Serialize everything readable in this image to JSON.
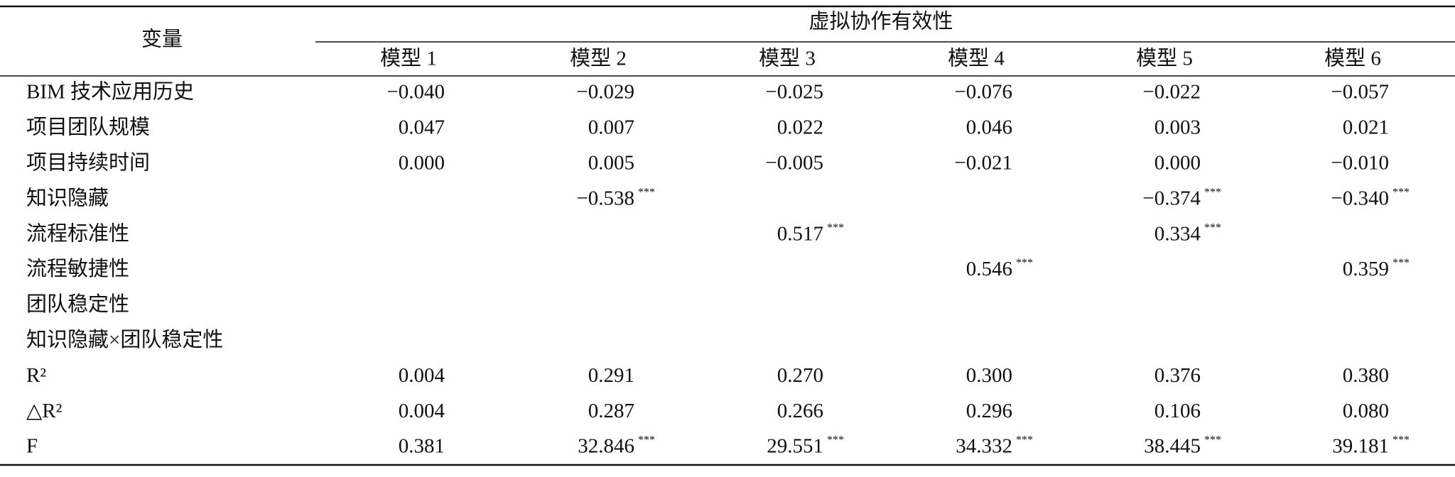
{
  "header": {
    "row_label": "变量",
    "group": "虚拟协作有效性",
    "models": [
      "模型 1",
      "模型 2",
      "模型 3",
      "模型 4",
      "模型 5",
      "模型 6"
    ]
  },
  "table": {
    "rows": [
      {
        "label": "BIM 技术应用历史",
        "cells": [
          {
            "text": "−0.040"
          },
          {
            "text": "−0.029"
          },
          {
            "text": "−0.025"
          },
          {
            "text": "−0.076"
          },
          {
            "text": "−0.022"
          },
          {
            "text": "−0.057"
          }
        ]
      },
      {
        "label": "项目团队规模",
        "cells": [
          {
            "text": "0.047"
          },
          {
            "text": "0.007"
          },
          {
            "text": "0.022"
          },
          {
            "text": "0.046"
          },
          {
            "text": "0.003"
          },
          {
            "text": "0.021"
          }
        ]
      },
      {
        "label": "项目持续时间",
        "cells": [
          {
            "text": "0.000"
          },
          {
            "text": "0.005"
          },
          {
            "text": "−0.005"
          },
          {
            "text": "−0.021"
          },
          {
            "text": "0.000"
          },
          {
            "text": "−0.010"
          }
        ]
      },
      {
        "label": "知识隐藏",
        "cells": [
          null,
          {
            "text": "−0.538",
            "sig": "***"
          },
          null,
          null,
          {
            "text": "−0.374",
            "sig": "***"
          },
          {
            "text": "−0.340",
            "sig": "***"
          }
        ]
      },
      {
        "label": "流程标准性",
        "cells": [
          null,
          null,
          {
            "text": "0.517",
            "sig": "***"
          },
          null,
          {
            "text": "0.334",
            "sig": "***"
          },
          null
        ]
      },
      {
        "label": "流程敏捷性",
        "cells": [
          null,
          null,
          null,
          {
            "text": "0.546",
            "sig": "***"
          },
          null,
          {
            "text": "0.359",
            "sig": "***"
          }
        ]
      },
      {
        "label": "团队稳定性",
        "cells": [
          null,
          null,
          null,
          null,
          null,
          null
        ]
      },
      {
        "label": "知识隐藏×团队稳定性",
        "cells": [
          null,
          null,
          null,
          null,
          null,
          null
        ]
      },
      {
        "label": "R²",
        "cells": [
          {
            "text": "0.004"
          },
          {
            "text": "0.291"
          },
          {
            "text": "0.270"
          },
          {
            "text": "0.300"
          },
          {
            "text": "0.376"
          },
          {
            "text": "0.380"
          }
        ]
      },
      {
        "label": "△R²",
        "cells": [
          {
            "text": "0.004"
          },
          {
            "text": "0.287"
          },
          {
            "text": "0.266"
          },
          {
            "text": "0.296"
          },
          {
            "text": "0.106"
          },
          {
            "text": "0.080"
          }
        ]
      },
      {
        "label": "F",
        "cells": [
          {
            "text": "0.381"
          },
          {
            "text": "32.846",
            "sig": "***"
          },
          {
            "text": "29.551",
            "sig": "***"
          },
          {
            "text": "34.332",
            "sig": "***"
          },
          {
            "text": "38.445",
            "sig": "***"
          },
          {
            "text": "39.181",
            "sig": "***"
          }
        ]
      }
    ]
  }
}
